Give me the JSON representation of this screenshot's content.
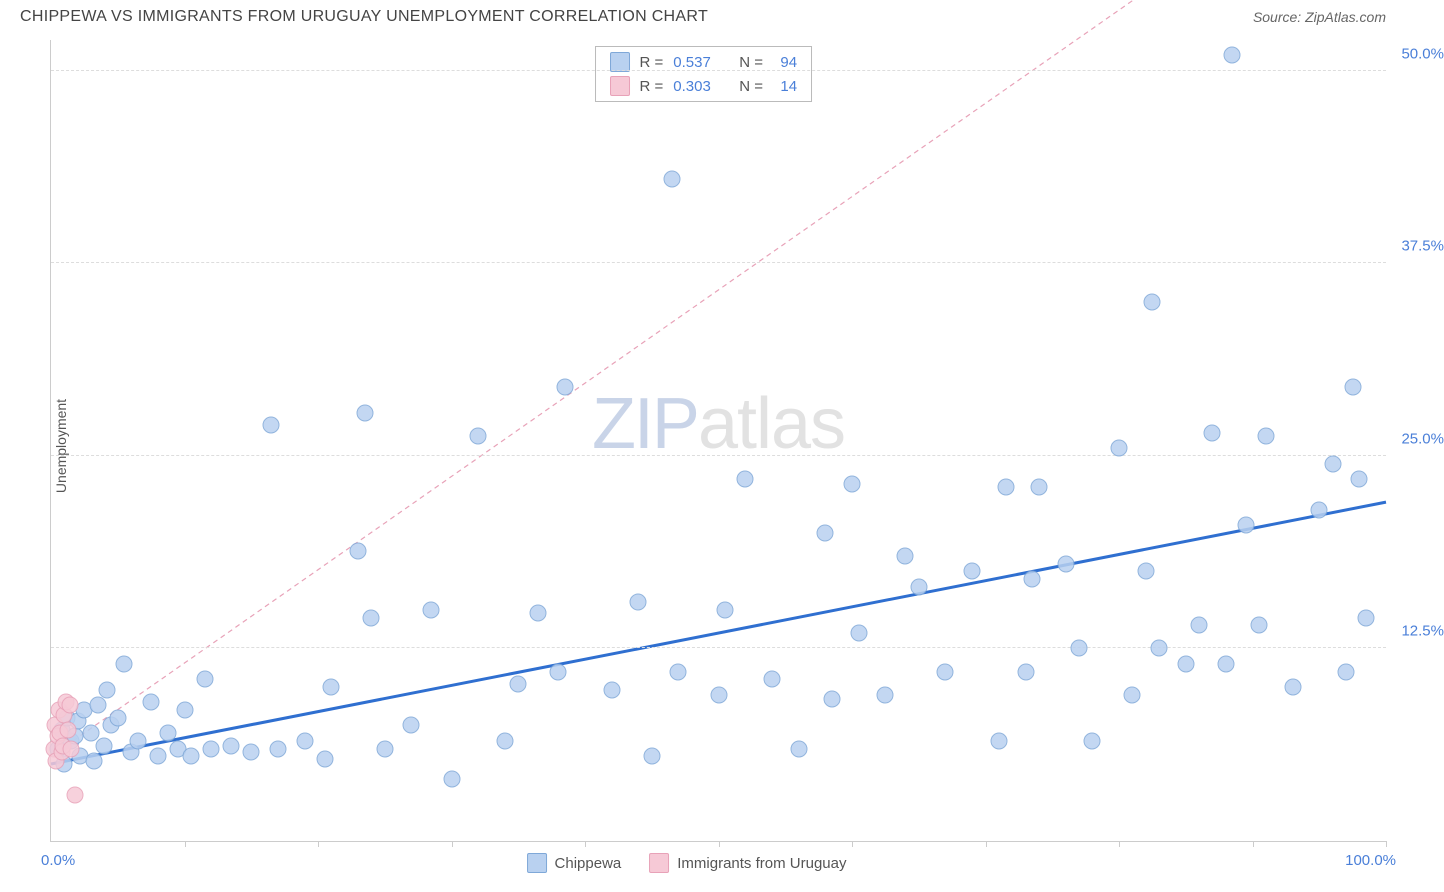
{
  "title": "CHIPPEWA VS IMMIGRANTS FROM URUGUAY UNEMPLOYMENT CORRELATION CHART",
  "source": "Source: ZipAtlas.com",
  "ylabel": "Unemployment",
  "watermark": {
    "left": "ZIP",
    "right": "atlas"
  },
  "chart": {
    "type": "scatter",
    "xlim": [
      0,
      100
    ],
    "ylim": [
      0,
      52
    ],
    "x_min_label": "0.0%",
    "x_max_label": "100.0%",
    "x_ticks": [
      10,
      20,
      30,
      40,
      50,
      60,
      70,
      80,
      90,
      100
    ],
    "y_gridlines": [
      {
        "v": 12.5,
        "label": "12.5%"
      },
      {
        "v": 25.0,
        "label": "25.0%"
      },
      {
        "v": 37.5,
        "label": "37.5%"
      },
      {
        "v": 50.0,
        "label": "50.0%"
      }
    ],
    "background_color": "#ffffff",
    "grid_color": "#dddddd",
    "axis_color": "#cccccc",
    "tick_label_color": "#4a7fd8",
    "point_radius": 8.5,
    "series": [
      {
        "name": "Chippewa",
        "fill": "#b9d1f0",
        "stroke": "#7fa8d8",
        "r_value": "0.537",
        "n_value": "94",
        "trend": {
          "x1": 0,
          "y1": 5.0,
          "x2": 100,
          "y2": 22.0,
          "color": "#2f6fd0",
          "width": 3,
          "dash": "none"
        },
        "points": [
          [
            0.5,
            6.0
          ],
          [
            0.8,
            7.2
          ],
          [
            1.0,
            5.0
          ],
          [
            1.2,
            8.0
          ],
          [
            1.5,
            6.5
          ],
          [
            1.8,
            6.8
          ],
          [
            2.0,
            7.8
          ],
          [
            2.2,
            5.5
          ],
          [
            2.5,
            8.5
          ],
          [
            3.0,
            7.0
          ],
          [
            3.2,
            5.2
          ],
          [
            3.5,
            8.8
          ],
          [
            4.0,
            6.2
          ],
          [
            4.2,
            9.8
          ],
          [
            4.5,
            7.5
          ],
          [
            5.0,
            8.0
          ],
          [
            5.5,
            11.5
          ],
          [
            6.0,
            5.8
          ],
          [
            6.5,
            6.5
          ],
          [
            7.5,
            9.0
          ],
          [
            8.0,
            5.5
          ],
          [
            8.8,
            7.0
          ],
          [
            9.5,
            6.0
          ],
          [
            10.0,
            8.5
          ],
          [
            10.5,
            5.5
          ],
          [
            11.5,
            10.5
          ],
          [
            12.0,
            6.0
          ],
          [
            13.5,
            6.2
          ],
          [
            15.0,
            5.8
          ],
          [
            16.5,
            27.0
          ],
          [
            17.0,
            6.0
          ],
          [
            19.0,
            6.5
          ],
          [
            20.5,
            5.3
          ],
          [
            21.0,
            10.0
          ],
          [
            23.0,
            18.8
          ],
          [
            23.5,
            27.8
          ],
          [
            24.0,
            14.5
          ],
          [
            25.0,
            6.0
          ],
          [
            27.0,
            7.5
          ],
          [
            28.5,
            15.0
          ],
          [
            30.0,
            4.0
          ],
          [
            32.0,
            26.3
          ],
          [
            34.0,
            6.5
          ],
          [
            35.0,
            10.2
          ],
          [
            36.5,
            14.8
          ],
          [
            38.0,
            11.0
          ],
          [
            38.5,
            29.5
          ],
          [
            42.0,
            9.8
          ],
          [
            44.0,
            15.5
          ],
          [
            45.0,
            5.5
          ],
          [
            46.5,
            43.0
          ],
          [
            47.0,
            11.0
          ],
          [
            50.0,
            9.5
          ],
          [
            50.5,
            15.0
          ],
          [
            52.0,
            23.5
          ],
          [
            54.0,
            10.5
          ],
          [
            56.0,
            6.0
          ],
          [
            58.0,
            20.0
          ],
          [
            58.5,
            9.2
          ],
          [
            60.0,
            23.2
          ],
          [
            60.5,
            13.5
          ],
          [
            62.5,
            9.5
          ],
          [
            64.0,
            18.5
          ],
          [
            65.0,
            16.5
          ],
          [
            67.0,
            11.0
          ],
          [
            69.0,
            17.5
          ],
          [
            71.0,
            6.5
          ],
          [
            71.5,
            23.0
          ],
          [
            73.0,
            11.0
          ],
          [
            73.5,
            17.0
          ],
          [
            74.0,
            23.0
          ],
          [
            76.0,
            18.0
          ],
          [
            77.0,
            12.5
          ],
          [
            78.0,
            6.5
          ],
          [
            80.0,
            25.5
          ],
          [
            81.0,
            9.5
          ],
          [
            82.0,
            17.5
          ],
          [
            82.5,
            35.0
          ],
          [
            83.0,
            12.5
          ],
          [
            85.0,
            11.5
          ],
          [
            86.0,
            14.0
          ],
          [
            87.0,
            26.5
          ],
          [
            88.0,
            11.5
          ],
          [
            88.5,
            51.0
          ],
          [
            89.5,
            20.5
          ],
          [
            90.5,
            14.0
          ],
          [
            91.0,
            26.3
          ],
          [
            93.0,
            10.0
          ],
          [
            95.0,
            21.5
          ],
          [
            96.0,
            24.5
          ],
          [
            97.0,
            11.0
          ],
          [
            97.5,
            29.5
          ],
          [
            98.0,
            23.5
          ],
          [
            98.5,
            14.5
          ]
        ]
      },
      {
        "name": "Immigrants from Uruguay",
        "fill": "#f6c9d6",
        "stroke": "#e8a2b8",
        "r_value": "0.303",
        "n_value": "14",
        "trend": {
          "x1": 0,
          "y1": 5.5,
          "x2": 90,
          "y2": 60.0,
          "color": "#e8a2b8",
          "width": 1.2,
          "dash": "5,4"
        },
        "points": [
          [
            0.2,
            6.0
          ],
          [
            0.3,
            7.5
          ],
          [
            0.4,
            5.2
          ],
          [
            0.5,
            6.8
          ],
          [
            0.6,
            8.5
          ],
          [
            0.7,
            7.0
          ],
          [
            0.8,
            5.8
          ],
          [
            0.9,
            6.2
          ],
          [
            1.0,
            8.2
          ],
          [
            1.1,
            9.0
          ],
          [
            1.3,
            7.2
          ],
          [
            1.5,
            6.0
          ],
          [
            1.8,
            3.0
          ],
          [
            1.4,
            8.8
          ]
        ]
      }
    ],
    "legend": [
      {
        "label": "Chippewa",
        "fill": "#b9d1f0",
        "stroke": "#7fa8d8"
      },
      {
        "label": "Immigrants from Uruguay",
        "fill": "#f6c9d6",
        "stroke": "#e8a2b8"
      }
    ]
  }
}
